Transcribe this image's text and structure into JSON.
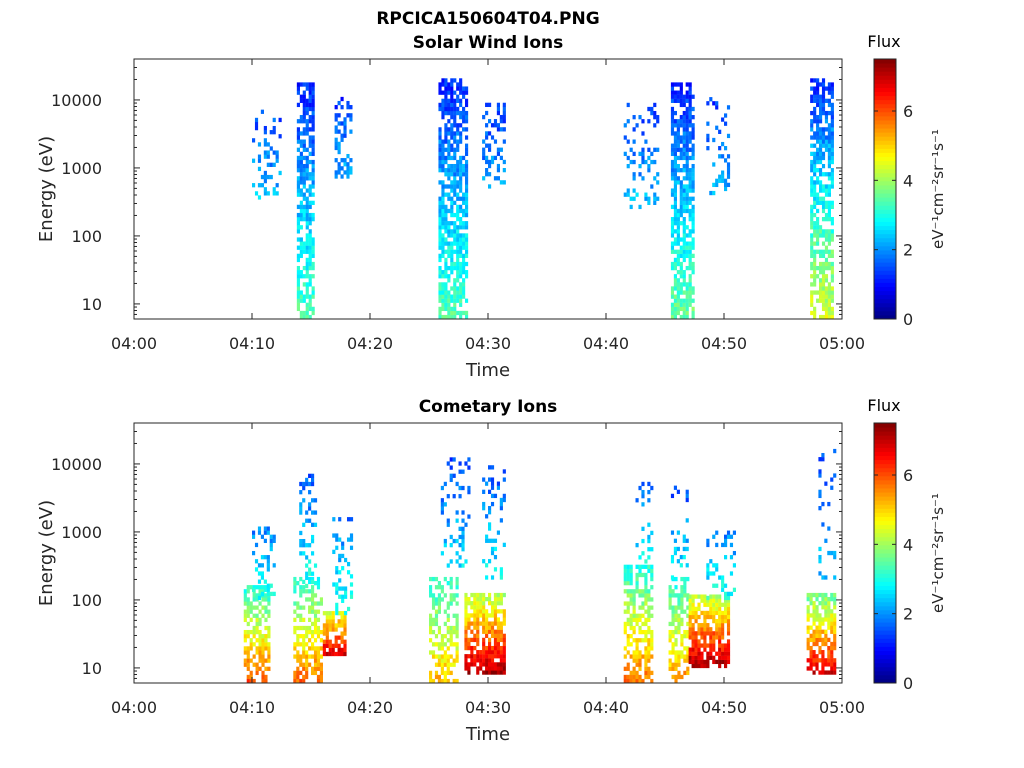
{
  "figure_title": "RPCICA150604T04.PNG",
  "chart_data": [
    {
      "type": "heatmap",
      "title": "Solar Wind Ions",
      "xlabel": "Time",
      "ylabel": "Energy (eV)",
      "x_ticks": [
        "04:00",
        "04:10",
        "04:20",
        "04:30",
        "04:40",
        "04:50",
        "05:00"
      ],
      "x_range_minutes": [
        0,
        60
      ],
      "y_scale": "log",
      "y_ticks": [
        "10",
        "100",
        "1000",
        "10000"
      ],
      "y_range": [
        6,
        40000
      ],
      "colorbar": {
        "label": "Flux",
        "units": "eV⁻¹cm⁻²sr⁻¹s⁻¹",
        "range": [
          0,
          7.5
        ],
        "ticks": [
          "0",
          "2",
          "4",
          "6"
        ],
        "colormap": "jet"
      },
      "bursts": [
        {
          "t0": 10.0,
          "t1": 12.5,
          "e_lo": 300,
          "e_hi": 7000,
          "flux": [
            1.4,
            2.4
          ],
          "density": 0.25
        },
        {
          "t0": 13.8,
          "t1": 15.2,
          "e_lo": 6,
          "e_hi": 16000,
          "flux": [
            1.2,
            3.4
          ],
          "density": 0.75
        },
        {
          "t0": 17.0,
          "t1": 18.5,
          "e_lo": 700,
          "e_hi": 10000,
          "flux": [
            1.3,
            2.2
          ],
          "density": 0.4
        },
        {
          "t0": 25.8,
          "t1": 28.3,
          "e_lo": 6,
          "e_hi": 20000,
          "flux": [
            1.2,
            3.4
          ],
          "density": 0.7
        },
        {
          "t0": 29.5,
          "t1": 31.5,
          "e_lo": 500,
          "e_hi": 9000,
          "flux": [
            1.3,
            2.2
          ],
          "density": 0.35
        },
        {
          "t0": 41.5,
          "t1": 44.5,
          "e_lo": 250,
          "e_hi": 8000,
          "flux": [
            1.4,
            2.4
          ],
          "density": 0.2
        },
        {
          "t0": 45.5,
          "t1": 47.5,
          "e_lo": 6,
          "e_hi": 16000,
          "flux": [
            1.2,
            3.6
          ],
          "density": 0.75
        },
        {
          "t0": 48.5,
          "t1": 50.5,
          "e_lo": 400,
          "e_hi": 10000,
          "flux": [
            1.3,
            2.2
          ],
          "density": 0.3
        },
        {
          "t0": 57.3,
          "t1": 59.2,
          "e_lo": 6,
          "e_hi": 20000,
          "flux": [
            1.2,
            4.4
          ],
          "density": 0.7
        }
      ]
    },
    {
      "type": "heatmap",
      "title": "Cometary Ions",
      "xlabel": "Time",
      "ylabel": "Energy (eV)",
      "x_ticks": [
        "04:00",
        "04:10",
        "04:20",
        "04:30",
        "04:40",
        "04:50",
        "05:00"
      ],
      "x_range_minutes": [
        0,
        60
      ],
      "y_scale": "log",
      "y_ticks": [
        "10",
        "100",
        "1000",
        "10000"
      ],
      "y_range": [
        6,
        40000
      ],
      "colorbar": {
        "label": "Flux",
        "units": "eV⁻¹cm⁻²sr⁻¹s⁻¹",
        "range": [
          0,
          7.5
        ],
        "ticks": [
          "0",
          "2",
          "4",
          "6"
        ],
        "colormap": "jet"
      },
      "bursts": [
        {
          "t0": 9.3,
          "t1": 11.5,
          "e_lo": 6,
          "e_hi": 150,
          "flux": [
            3.0,
            6.0
          ],
          "density": 0.65
        },
        {
          "t0": 10.0,
          "t1": 12.0,
          "e_lo": 100,
          "e_hi": 1200,
          "flux": [
            1.8,
            3.0
          ],
          "density": 0.3
        },
        {
          "t0": 13.5,
          "t1": 15.8,
          "e_lo": 6,
          "e_hi": 200,
          "flux": [
            3.0,
            5.8
          ],
          "density": 0.6
        },
        {
          "t0": 14.0,
          "t1": 15.5,
          "e_lo": 150,
          "e_hi": 7000,
          "flux": [
            1.5,
            3.0
          ],
          "density": 0.25
        },
        {
          "t0": 16.0,
          "t1": 18.0,
          "e_lo": 15,
          "e_hi": 60,
          "flux": [
            4.5,
            6.8
          ],
          "density": 0.75
        },
        {
          "t0": 16.8,
          "t1": 18.5,
          "e_lo": 60,
          "e_hi": 1500,
          "flux": [
            1.8,
            3.0
          ],
          "density": 0.3
        },
        {
          "t0": 25.0,
          "t1": 27.5,
          "e_lo": 6,
          "e_hi": 200,
          "flux": [
            3.0,
            5.2
          ],
          "density": 0.55
        },
        {
          "t0": 26.0,
          "t1": 28.5,
          "e_lo": 300,
          "e_hi": 12000,
          "flux": [
            1.4,
            2.6
          ],
          "density": 0.22
        },
        {
          "t0": 28.0,
          "t1": 31.5,
          "e_lo": 8,
          "e_hi": 120,
          "flux": [
            4.0,
            7.2
          ],
          "density": 0.8
        },
        {
          "t0": 29.5,
          "t1": 31.5,
          "e_lo": 200,
          "e_hi": 9000,
          "flux": [
            1.5,
            2.8
          ],
          "density": 0.25
        },
        {
          "t0": 41.5,
          "t1": 44.0,
          "e_lo": 6,
          "e_hi": 300,
          "flux": [
            3.0,
            5.8
          ],
          "density": 0.6
        },
        {
          "t0": 42.5,
          "t1": 44.0,
          "e_lo": 300,
          "e_hi": 5000,
          "flux": [
            1.5,
            3.0
          ],
          "density": 0.2
        },
        {
          "t0": 45.3,
          "t1": 47.0,
          "e_lo": 6,
          "e_hi": 200,
          "flux": [
            3.0,
            5.5
          ],
          "density": 0.55
        },
        {
          "t0": 45.5,
          "t1": 47.0,
          "e_lo": 200,
          "e_hi": 5500,
          "flux": [
            1.4,
            2.8
          ],
          "density": 0.25
        },
        {
          "t0": 47.0,
          "t1": 50.5,
          "e_lo": 10,
          "e_hi": 120,
          "flux": [
            4.0,
            7.2
          ],
          "density": 0.8
        },
        {
          "t0": 48.5,
          "t1": 51.0,
          "e_lo": 100,
          "e_hi": 1000,
          "flux": [
            1.8,
            3.0
          ],
          "density": 0.3
        },
        {
          "t0": 57.0,
          "t1": 59.5,
          "e_lo": 8,
          "e_hi": 120,
          "flux": [
            3.5,
            6.8
          ],
          "density": 0.75
        },
        {
          "t0": 58.0,
          "t1": 59.5,
          "e_lo": 200,
          "e_hi": 15000,
          "flux": [
            1.4,
            2.4
          ],
          "density": 0.15
        }
      ]
    }
  ]
}
